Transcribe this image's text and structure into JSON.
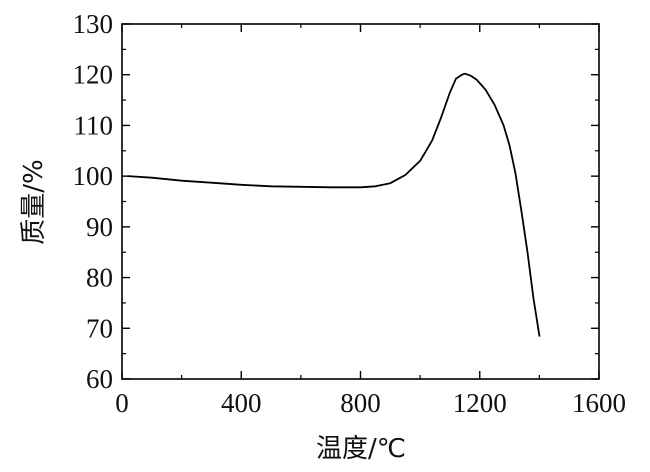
{
  "chart_data": {
    "type": "line",
    "xlabel": "温度/℃",
    "ylabel": "质量/%",
    "xlim": [
      0,
      1600
    ],
    "ylim": [
      60,
      130
    ],
    "x_ticks": [
      0,
      400,
      800,
      1200,
      1600
    ],
    "x_tick_labels": [
      "0",
      "400",
      "800",
      "1200",
      "1600"
    ],
    "y_ticks": [
      60,
      70,
      80,
      90,
      100,
      110,
      120,
      130
    ],
    "y_tick_labels": [
      "60",
      "70",
      "80",
      "90",
      "100",
      "110",
      "120",
      "130"
    ],
    "grid": false,
    "series": [
      {
        "x": [
          20,
          100,
          200,
          300,
          400,
          500,
          600,
          700,
          800,
          850,
          900,
          950,
          1000,
          1040,
          1070,
          1100,
          1120,
          1140,
          1150,
          1170,
          1190,
          1220,
          1250,
          1280,
          1300,
          1320,
          1340,
          1360,
          1380,
          1400
        ],
        "y": [
          100,
          99.7,
          99.1,
          98.7,
          98.3,
          98.0,
          97.9,
          97.8,
          97.8,
          98.0,
          98.6,
          100.2,
          103.0,
          107.0,
          111.5,
          116.5,
          119.2,
          120.0,
          120.2,
          119.8,
          119.0,
          117.0,
          114.0,
          110.0,
          106.0,
          100.5,
          93.0,
          85.0,
          76.0,
          68.5
        ],
        "color": "#000000"
      }
    ]
  }
}
